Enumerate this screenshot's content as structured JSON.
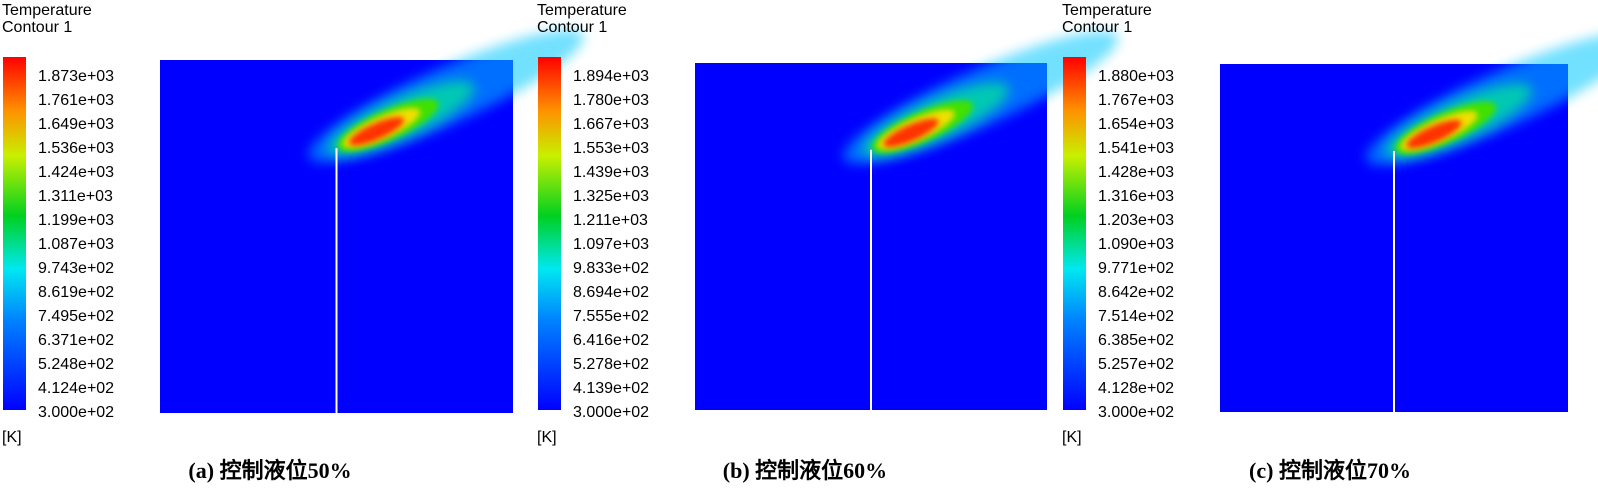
{
  "panels": [
    {
      "legend_title": [
        "Temperature",
        "Contour 1"
      ],
      "ticks": [
        "1.873e+03",
        "1.761e+03",
        "1.649e+03",
        "1.536e+03",
        "1.424e+03",
        "1.311e+03",
        "1.199e+03",
        "1.087e+03",
        "9.743e+02",
        "8.619e+02",
        "7.495e+02",
        "6.371e+02",
        "5.248e+02",
        "4.124e+02",
        "3.000e+02"
      ],
      "unit": "[K]",
      "caption": "(a) 控制液位50%"
    },
    {
      "legend_title": [
        "Temperature",
        "Contour 1"
      ],
      "ticks": [
        "1.894e+03",
        "1.780e+03",
        "1.667e+03",
        "1.553e+03",
        "1.439e+03",
        "1.325e+03",
        "1.211e+03",
        "1.097e+03",
        "9.833e+02",
        "8.694e+02",
        "7.555e+02",
        "6.416e+02",
        "5.278e+02",
        "4.139e+02",
        "3.000e+02"
      ],
      "unit": "[K]",
      "caption": "(b) 控制液位60%"
    },
    {
      "legend_title": [
        "Temperature",
        "Contour 1"
      ],
      "ticks": [
        "1.880e+03",
        "1.767e+03",
        "1.654e+03",
        "1.541e+03",
        "1.428e+03",
        "1.316e+03",
        "1.203e+03",
        "1.090e+03",
        "9.771e+02",
        "8.642e+02",
        "7.514e+02",
        "6.385e+02",
        "5.257e+02",
        "4.128e+02",
        "3.000e+02"
      ],
      "unit": "[K]",
      "caption": "(c) 控制液位70%"
    }
  ]
}
